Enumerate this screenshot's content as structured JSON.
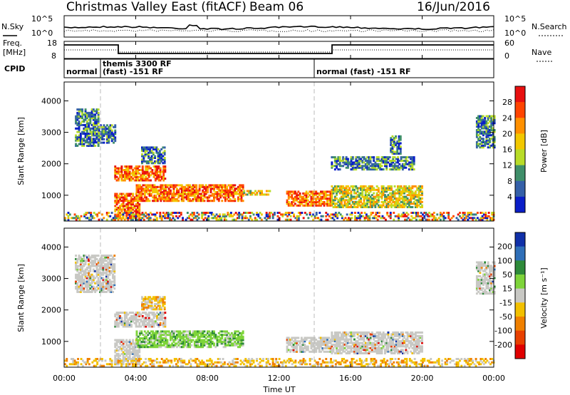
{
  "header": {
    "title": "Christmas Valley East (fitACF)",
    "beam": "Beam 06",
    "date": "16/Jun/2016"
  },
  "panels": {
    "nsky": {
      "left_label": "N.Sky",
      "right_label": "N.Search",
      "left_ticks": [
        "10^5",
        "10^0"
      ],
      "right_ticks": [
        "10^5",
        "10^0"
      ]
    },
    "freq": {
      "left_label_1": "Freq.",
      "left_label_2": "[MHz]",
      "left_ticks": [
        "18",
        "8"
      ],
      "right_ticks": [
        "60",
        "0"
      ],
      "right_label": "Nave"
    },
    "cpid": {
      "label": "CPID",
      "segments": [
        {
          "label": "normal",
          "start": 0,
          "end": 1.8
        },
        {
          "label": "themis 3300 RF",
          "label2": "(fast) -151 RF",
          "start": 1.8,
          "end": 14.1
        },
        {
          "label": "normal (fast) -151 RF",
          "start": 14.1,
          "end": 24
        }
      ]
    }
  },
  "xaxis": {
    "label": "Time UT",
    "ticks": [
      "00:00",
      "04:00",
      "08:00",
      "12:00",
      "16:00",
      "20:00",
      "00:00"
    ]
  },
  "chart_data": [
    {
      "type": "heatmap",
      "name": "power",
      "ylabel": "Slant Range [km]",
      "x_range_hours": [
        0,
        24
      ],
      "ylim": [
        180,
        4600
      ],
      "yticks": [
        1000,
        2000,
        3000,
        4000
      ],
      "colorbar": {
        "label": "Power [dB]",
        "ticks": [
          "28",
          "24",
          "20",
          "16",
          "12",
          "8",
          "4"
        ],
        "colors": [
          "#e81010",
          "#ff4400",
          "#ff9000",
          "#f2c800",
          "#b8dc28",
          "#3f8f6a",
          "#3560a8",
          "#0a1ec8"
        ]
      },
      "echo_regions": [
        {
          "t": [
            0.6,
            1.9
          ],
          "r": [
            2550,
            3750
          ],
          "level": "low"
        },
        {
          "t": [
            1.9,
            2.8
          ],
          "r": [
            2650,
            3250
          ],
          "level": "low"
        },
        {
          "t": [
            2.8,
            5.6
          ],
          "r": [
            1450,
            1900
          ],
          "level": "high"
        },
        {
          "t": [
            4.3,
            5.6
          ],
          "r": [
            2000,
            2500
          ],
          "level": "low"
        },
        {
          "t": [
            2.8,
            4.2
          ],
          "r": [
            250,
            1050
          ],
          "level": "high"
        },
        {
          "t": [
            4.0,
            10.0
          ],
          "r": [
            800,
            1350
          ],
          "level": "high"
        },
        {
          "t": [
            10.0,
            11.5
          ],
          "r": [
            1000,
            1150
          ],
          "level": "mid"
        },
        {
          "t": [
            12.4,
            14.9
          ],
          "r": [
            650,
            1100
          ],
          "level": "high"
        },
        {
          "t": [
            14.9,
            20.0
          ],
          "r": [
            600,
            1300
          ],
          "level": "mid"
        },
        {
          "t": [
            14.9,
            19.5
          ],
          "r": [
            1800,
            2200
          ],
          "level": "low"
        },
        {
          "t": [
            18.2,
            18.8
          ],
          "r": [
            2300,
            2900
          ],
          "level": "low"
        },
        {
          "t": [
            23.0,
            24.0
          ],
          "r": [
            2500,
            3500
          ],
          "level": "low"
        },
        {
          "t": [
            0,
            24
          ],
          "r": [
            200,
            450
          ],
          "level": "mixed"
        }
      ]
    },
    {
      "type": "heatmap",
      "name": "velocity",
      "ylabel": "Slant Range [km]",
      "x_range_hours": [
        0,
        24
      ],
      "ylim": [
        180,
        4600
      ],
      "yticks": [
        1000,
        2000,
        3000,
        4000
      ],
      "colorbar": {
        "label": "Velocity [m s⁻¹]",
        "ticks": [
          "200",
          "100",
          "50",
          "15",
          "-15",
          "-50",
          "-100",
          "-200"
        ],
        "colors": [
          "#1030a8",
          "#2f6fb8",
          "#2e8a3a",
          "#7ed43a",
          "#c8c8c4",
          "#f2c000",
          "#f08000",
          "#e84000",
          "#e00000"
        ]
      },
      "echo_regions": [
        {
          "t": [
            0.6,
            2.8
          ],
          "r": [
            2550,
            3750
          ],
          "level": "ground"
        },
        {
          "t": [
            2.8,
            5.6
          ],
          "r": [
            1450,
            1900
          ],
          "level": "ground"
        },
        {
          "t": [
            4.3,
            5.6
          ],
          "r": [
            2000,
            2400
          ],
          "level": "neg"
        },
        {
          "t": [
            2.8,
            4.2
          ],
          "r": [
            250,
            1050
          ],
          "level": "ground"
        },
        {
          "t": [
            4.0,
            10.0
          ],
          "r": [
            800,
            1350
          ],
          "level": "pos"
        },
        {
          "t": [
            12.4,
            14.9
          ],
          "r": [
            650,
            1100
          ],
          "level": "ground"
        },
        {
          "t": [
            14.9,
            20.0
          ],
          "r": [
            600,
            1300
          ],
          "level": "ground"
        },
        {
          "t": [
            23.0,
            24.0
          ],
          "r": [
            2500,
            3500
          ],
          "level": "ground"
        },
        {
          "t": [
            0,
            24
          ],
          "r": [
            200,
            450
          ],
          "level": "neg"
        }
      ]
    }
  ]
}
